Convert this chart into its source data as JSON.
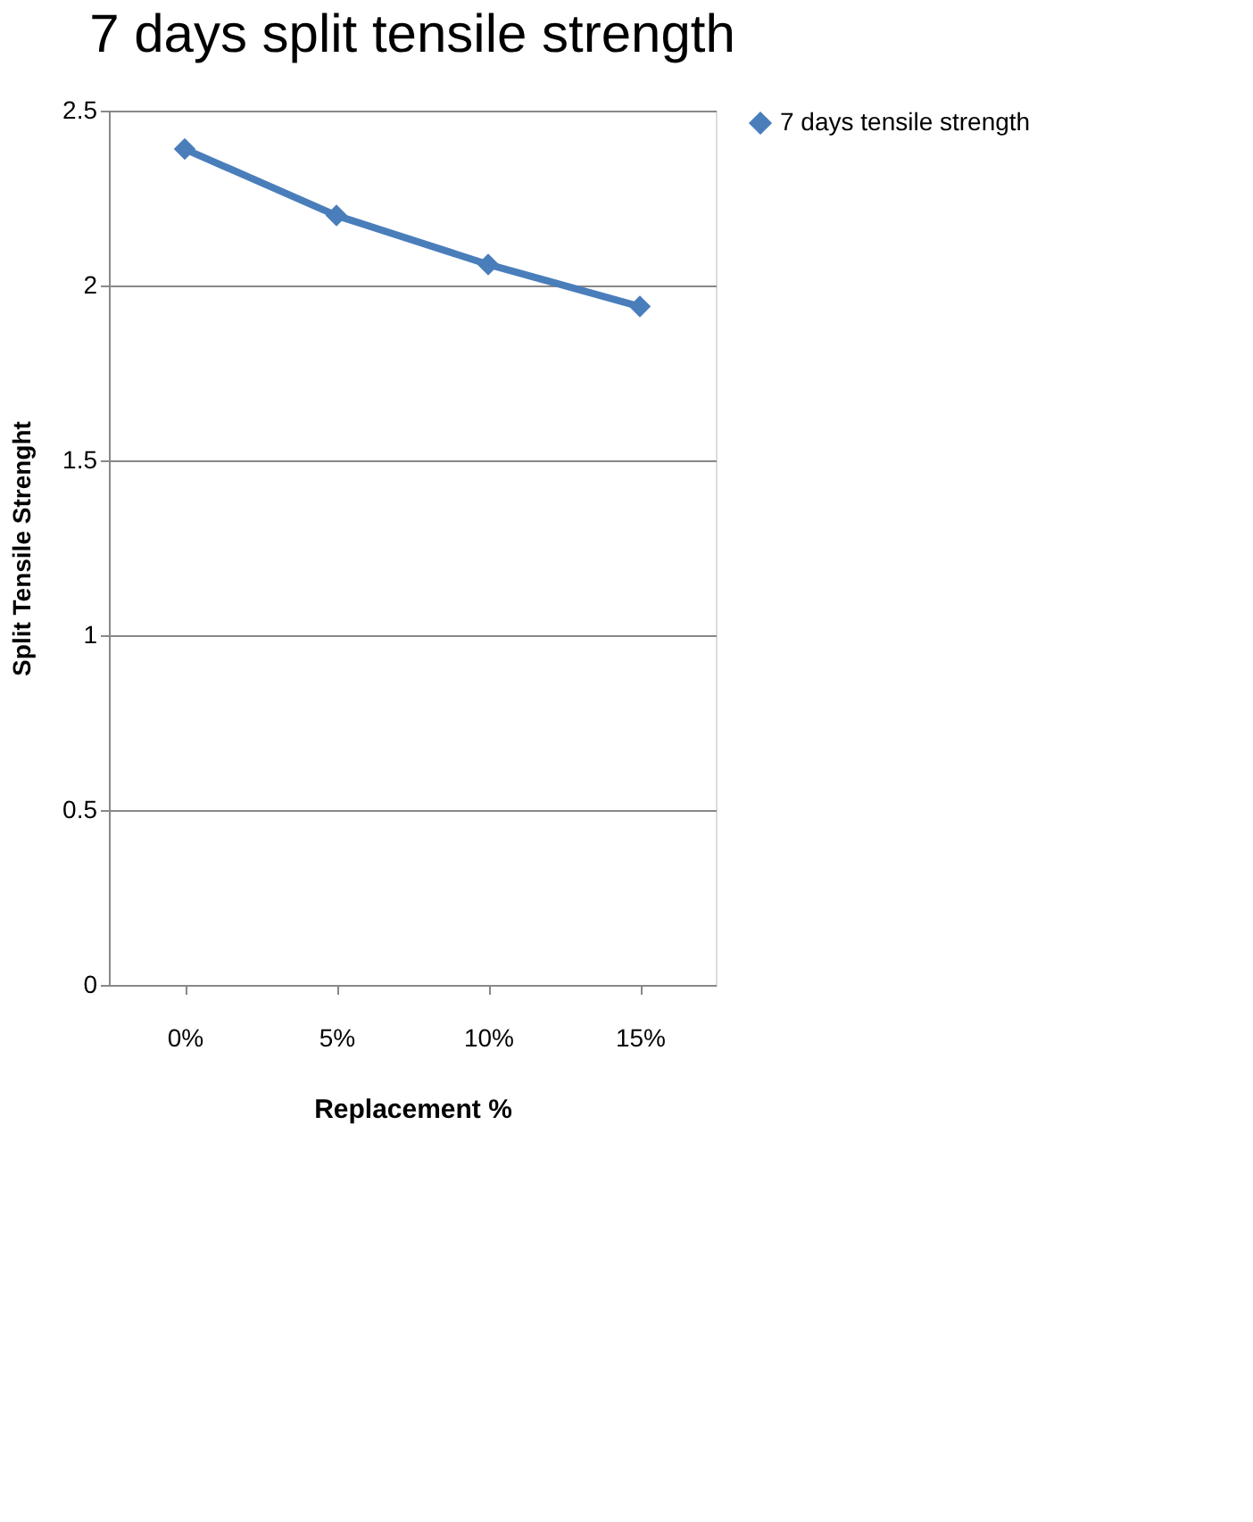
{
  "chart_data": {
    "type": "line",
    "title": "7 days split tensile strength",
    "xlabel": "Replacement %",
    "ylabel": "Split Tensile Strenght",
    "categories": [
      "0%",
      "5%",
      "10%",
      "15%"
    ],
    "series": [
      {
        "name": "7 days tensile strength",
        "color": "#4a7ebb",
        "values": [
          2.39,
          2.2,
          2.06,
          1.94
        ]
      }
    ],
    "ylim": [
      0,
      2.5
    ],
    "yticks": [
      0,
      0.5,
      1,
      1.5,
      2,
      2.5
    ],
    "grid": "y",
    "legend": "right",
    "marker": "diamond",
    "line_style": "solid"
  }
}
